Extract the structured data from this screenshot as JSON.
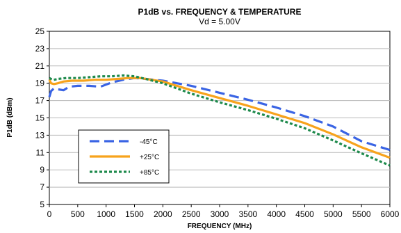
{
  "chart_data": {
    "type": "line",
    "title": "P1dB vs. FREQUENCY & TEMPERATURE",
    "subtitle": "Vd = 5.00V",
    "xlabel": "FREQUENCY (MHz)",
    "ylabel": "P1dB (dBm)",
    "xlim": [
      0,
      6000
    ],
    "ylim": [
      5,
      25
    ],
    "xticks": [
      0,
      500,
      1000,
      1500,
      2000,
      2500,
      3000,
      3500,
      4000,
      4500,
      5000,
      5500,
      6000
    ],
    "yticks": [
      5,
      7,
      9,
      11,
      13,
      15,
      17,
      19,
      21,
      23,
      25
    ],
    "grid": "horizontal",
    "legend_position": "left",
    "series": [
      {
        "name": "-45°C",
        "color": "#3a64e4",
        "dash": "long-dash",
        "x": [
          0,
          30,
          80,
          150,
          250,
          350,
          500,
          700,
          900,
          1100,
          1300,
          1500,
          1700,
          2000,
          2500,
          3000,
          3500,
          4000,
          4500,
          5000,
          5500,
          6000
        ],
        "y": [
          17.4,
          18.1,
          18.4,
          18.3,
          18.2,
          18.6,
          18.7,
          18.7,
          18.6,
          19.1,
          19.4,
          19.6,
          19.5,
          19.3,
          18.7,
          17.9,
          17.1,
          16.2,
          15.2,
          14.0,
          12.3,
          11.3
        ]
      },
      {
        "name": "+25°C",
        "color": "#f7a31c",
        "dash": "solid",
        "x": [
          0,
          30,
          80,
          150,
          250,
          400,
          600,
          800,
          1000,
          1200,
          1400,
          1600,
          2000,
          2500,
          3000,
          3500,
          4000,
          4500,
          5000,
          5500,
          6000
        ],
        "y": [
          19.4,
          19.0,
          18.9,
          19.0,
          19.2,
          19.3,
          19.3,
          19.4,
          19.4,
          19.5,
          19.6,
          19.6,
          19.2,
          18.2,
          17.3,
          16.4,
          15.4,
          14.4,
          13.1,
          11.6,
          10.4
        ]
      },
      {
        "name": "+85°C",
        "color": "#1e8a4c",
        "dash": "dotted",
        "x": [
          0,
          30,
          80,
          150,
          300,
          500,
          700,
          900,
          1100,
          1300,
          1500,
          1700,
          2000,
          2500,
          3000,
          3500,
          4000,
          4500,
          5000,
          5500,
          6000
        ],
        "y": [
          19.6,
          19.5,
          19.4,
          19.5,
          19.6,
          19.6,
          19.7,
          19.8,
          19.8,
          19.9,
          19.8,
          19.5,
          19.0,
          17.8,
          16.8,
          15.9,
          14.9,
          13.8,
          12.4,
          10.9,
          9.5
        ]
      }
    ]
  }
}
